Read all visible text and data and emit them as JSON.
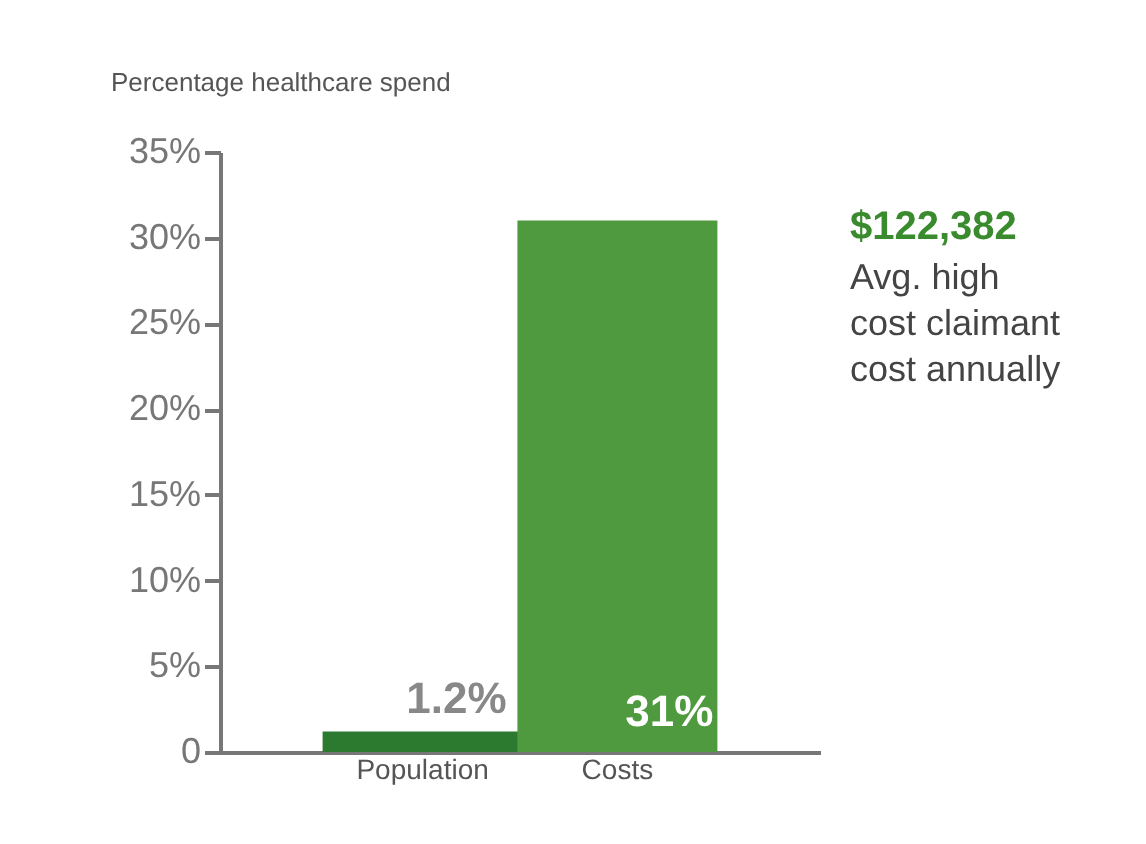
{
  "chart_data": {
    "type": "bar",
    "ylabel": "Percentage healthcare spend",
    "categories": [
      "Population",
      "Costs"
    ],
    "values": [
      1.2,
      31
    ],
    "colors": [
      "#2b7a2f",
      "#4f9a3e"
    ],
    "value_labels": [
      "1.2%",
      "31%"
    ],
    "ylim": [
      0,
      35
    ],
    "yticks": [
      0,
      {
        "value": 5,
        "label": "5%"
      },
      {
        "value": 10,
        "label": "10%"
      },
      {
        "value": 15,
        "label": "15%"
      },
      {
        "value": 20,
        "label": "20%"
      },
      {
        "value": 25,
        "label": "25%"
      },
      {
        "value": 30,
        "label": "30%"
      },
      {
        "value": 35,
        "label": "35%"
      }
    ],
    "annotations": [
      "$122,382",
      "Avg. high cost claimant cost annually"
    ],
    "grid": false
  }
}
